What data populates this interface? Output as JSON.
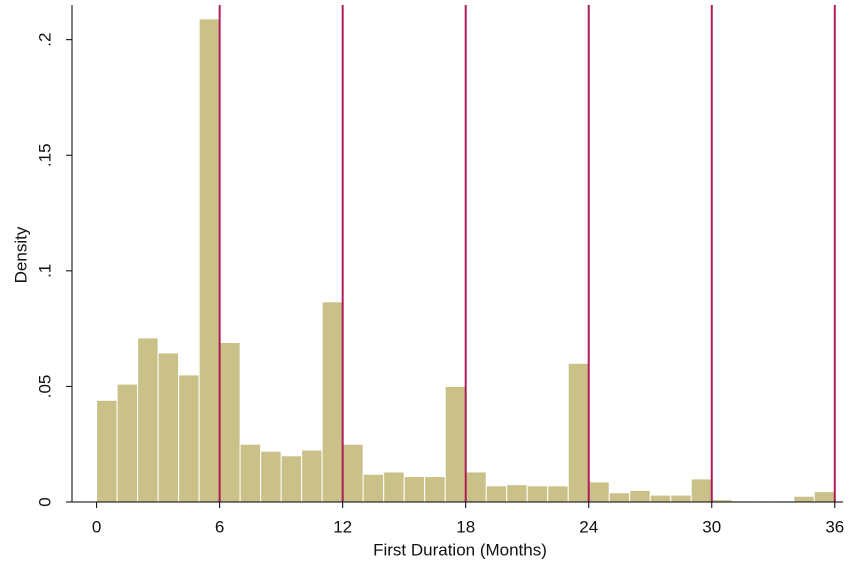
{
  "chart_data": {
    "type": "histogram",
    "xlabel": "First Duration (Months)",
    "ylabel": "Density",
    "bins": [
      0,
      1,
      2,
      3,
      4,
      5,
      6,
      7,
      8,
      9,
      10,
      11,
      12,
      13,
      14,
      15,
      16,
      17,
      18,
      19,
      20,
      21,
      22,
      23,
      24,
      25,
      26,
      27,
      28,
      29,
      30,
      31,
      32,
      33,
      34,
      35,
      36
    ],
    "values": [
      0.044,
      0.051,
      0.071,
      0.0645,
      0.055,
      0.209,
      0.069,
      0.025,
      0.022,
      0.02,
      0.0225,
      0.0866,
      0.025,
      0.012,
      0.013,
      0.011,
      0.011,
      0.05,
      0.013,
      0.007,
      0.0075,
      0.007,
      0.007,
      0.06,
      0.0087,
      0.004,
      0.005,
      0.003,
      0.003,
      0.01,
      0.001,
      0.0005,
      0.0005,
      0.0005,
      0.0025,
      0.0045
    ],
    "color": "#c9c188",
    "xlim": [
      -1.2,
      36.4
    ],
    "ylim": [
      0,
      0.215
    ],
    "xticks": [
      0,
      6,
      12,
      18,
      24,
      30,
      36
    ],
    "yticks": [
      0,
      {
        "value": 0.05,
        "label": ".05"
      },
      {
        "value": 0.1,
        "label": ".1"
      },
      {
        "value": 0.15,
        "label": ".15"
      },
      {
        "value": 0.2,
        "label": ".2"
      }
    ],
    "xlines": [
      6,
      12,
      18,
      24,
      30,
      36
    ],
    "xline_color": "#b01c5a"
  }
}
